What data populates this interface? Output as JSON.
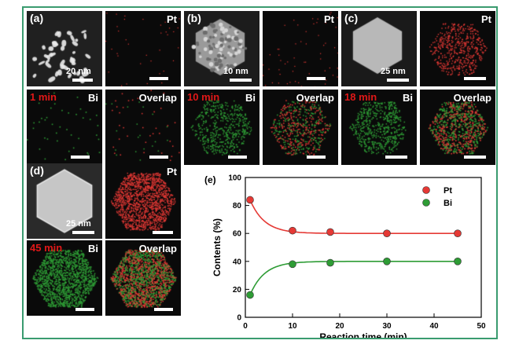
{
  "panels": {
    "a": {
      "label": "(a)",
      "scale": "20 nm",
      "time": "1 min"
    },
    "b": {
      "label": "(b)",
      "scale": "10 nm",
      "time": "10 min"
    },
    "c": {
      "label": "(c)",
      "scale": "25 nm",
      "time": "18 min"
    },
    "d": {
      "label": "(d)",
      "scale": "25 nm",
      "time": "45 min"
    }
  },
  "elements": {
    "pt": "Pt",
    "bi": "Bi",
    "overlap": "Overlap"
  },
  "colors": {
    "frame": "#3a9b6f",
    "pt": "#e53935",
    "bi": "#2e9c35",
    "time_label": "#e01818"
  },
  "chart_data": {
    "type": "scatter",
    "panel_label": "(e)",
    "xlabel": "Reaction time (min)",
    "ylabel": "Contents (%)",
    "xlim": [
      0,
      50
    ],
    "ylim": [
      0,
      100
    ],
    "xticks": [
      0,
      10,
      20,
      30,
      40,
      50
    ],
    "yticks": [
      0,
      20,
      40,
      60,
      80,
      100
    ],
    "legend_position": "top-right",
    "series": [
      {
        "name": "Pt",
        "color": "#e53935",
        "x": [
          1,
          10,
          18,
          30,
          45
        ],
        "y": [
          84,
          62,
          61,
          60,
          60
        ],
        "fit": "exponential decay"
      },
      {
        "name": "Bi",
        "color": "#2e9c35",
        "x": [
          1,
          10,
          18,
          30,
          45
        ],
        "y": [
          16,
          38,
          39,
          40,
          40
        ],
        "fit": "exponential rise"
      }
    ]
  }
}
